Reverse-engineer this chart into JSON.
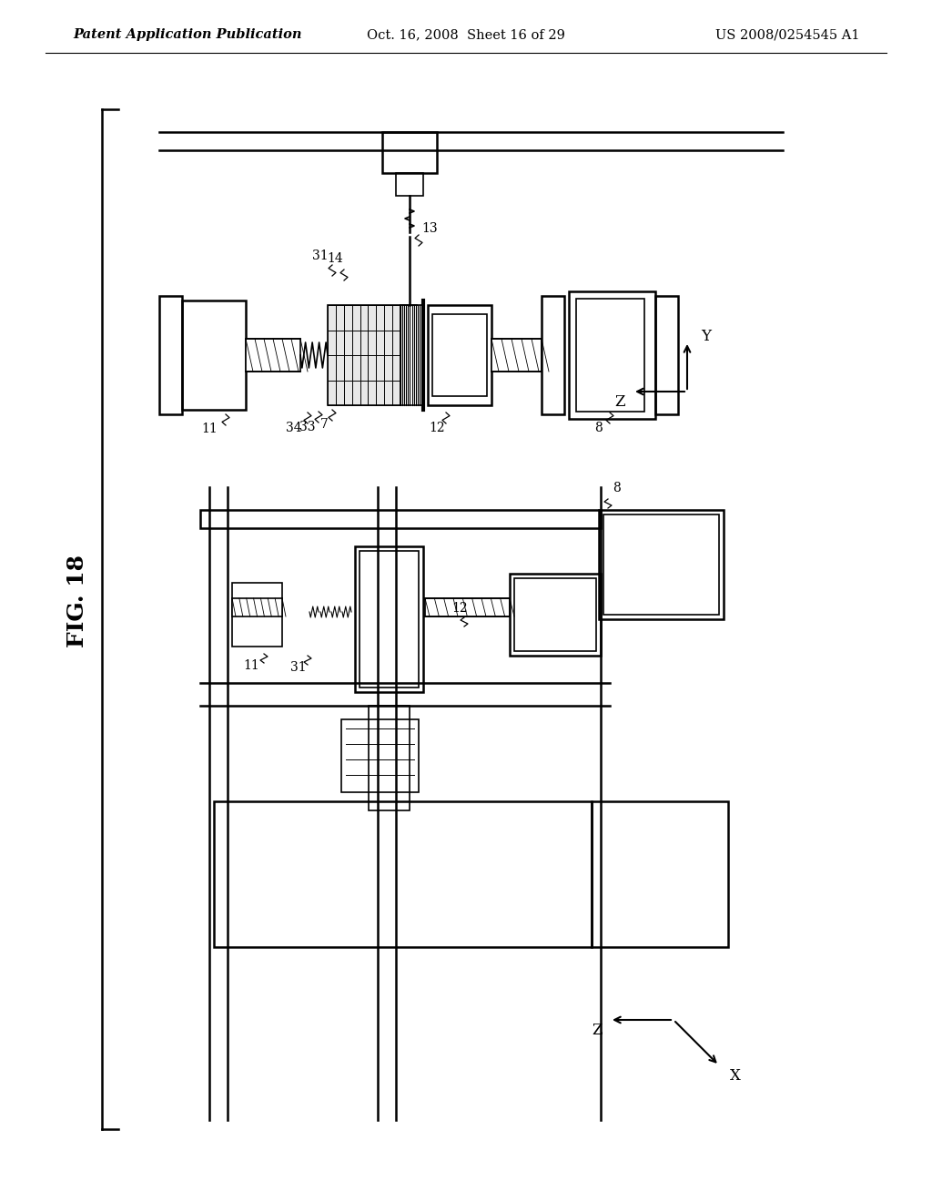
{
  "background_color": "#ffffff",
  "header": {
    "left": "Patent Application Publication",
    "center": "Oct. 16, 2008  Sheet 16 of 29",
    "right": "US 2008/0254545 A1",
    "font_size": 10.5
  },
  "fig_label": "FIG. 18",
  "lw": 1.2,
  "lw2": 1.8
}
